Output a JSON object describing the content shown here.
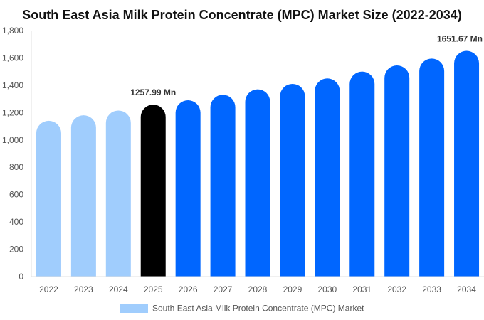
{
  "chart_data": {
    "type": "bar",
    "title": "South East Asia Milk Protein Concentrate (MPC) Market Size (2022-2034)",
    "xlabel": "",
    "ylabel": "",
    "categories": [
      "2022",
      "2023",
      "2024",
      "2025",
      "2026",
      "2027",
      "2028",
      "2029",
      "2030",
      "2031",
      "2032",
      "2033",
      "2034"
    ],
    "series": [
      {
        "name": "South East Asia Milk Protein Concentrate (MPC) Market",
        "values": [
          1140,
          1180,
          1215,
          1257.99,
          1290,
          1330,
          1370,
          1410,
          1450,
          1500,
          1545,
          1595,
          1651.67
        ]
      }
    ],
    "ylim": [
      0,
      1800
    ],
    "yticks": [
      0,
      200,
      400,
      600,
      800,
      1000,
      1200,
      1400,
      1600,
      1800
    ],
    "ytick_labels": [
      "0",
      "200",
      "400",
      "600",
      "800",
      "1,000",
      "1,200",
      "1,400",
      "1,600",
      "1,800"
    ],
    "bar_colors": [
      "#a0cdfd",
      "#a0cdfd",
      "#a0cdfd",
      "#000000",
      "#0066ff",
      "#0066ff",
      "#0066ff",
      "#0066ff",
      "#0066ff",
      "#0066ff",
      "#0066ff",
      "#0066ff",
      "#0066ff"
    ],
    "legend_color": "#a0cdfd",
    "legend_position": "bottom-center",
    "grid": false,
    "annotations": [
      {
        "index": 3,
        "text": "1257.99 Mn"
      },
      {
        "index": 12,
        "text": "1651.67 Mn"
      }
    ]
  }
}
